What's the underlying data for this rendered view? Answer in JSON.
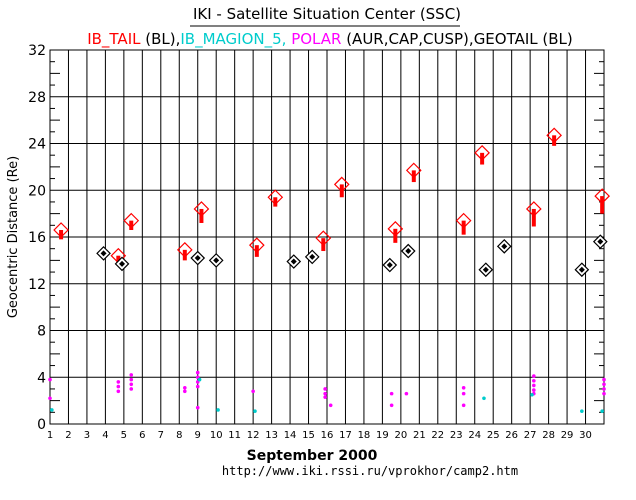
{
  "header": {
    "title": "IKI - Satellite Situation Center (SSC)",
    "subtitle_parts": [
      {
        "text": "IB_TAIL",
        "color": "#ff0000"
      },
      {
        "text": " (BL),",
        "color": "#000000"
      },
      {
        "text": "IB_MAGION_5,",
        "color": "#00cccc"
      },
      {
        "text": " POLAR",
        "color": "#ff00ff"
      },
      {
        "text": " (AUR,CAP,CUSP),",
        "color": "#000000"
      },
      {
        "text": "GEOTAIL",
        "color": "#000000"
      },
      {
        "text": " (BL)",
        "color": "#000000"
      }
    ]
  },
  "footer": {
    "month_year": "September   2000",
    "url": "http://www.iki.rssi.ru/vprokhor/camp2.htm"
  },
  "colors": {
    "ib_tail": "#ff0000",
    "ib_magion_5": "#00cccc",
    "polar": "#ff00ff",
    "geotail": "#000000",
    "grid": "#000000"
  },
  "chart_data": {
    "type": "scatter",
    "ylabel": "Geocentric Distance (Re)",
    "xlabel": "September 2000",
    "ylim": [
      0,
      32
    ],
    "xlim": [
      1,
      31
    ],
    "yticks": [
      0,
      4,
      8,
      12,
      16,
      20,
      24,
      28,
      32
    ],
    "xtick_labels": [
      "1",
      "2",
      "3",
      "4",
      "5",
      "6",
      "7",
      "8",
      "9",
      "10",
      "11",
      "12",
      "13",
      "14",
      "15",
      "16",
      "17",
      "18",
      "19",
      "20",
      "21",
      "22",
      "23",
      "24",
      "25",
      "26",
      "27",
      "28",
      "29",
      "30"
    ],
    "grid": true,
    "series": [
      {
        "name": "IB_TAIL",
        "marker": "diamond-with-bar",
        "points": [
          {
            "x": 1.6,
            "y": 16.6,
            "low": 15.8
          },
          {
            "x": 4.7,
            "y": 14.4,
            "low": 13.6
          },
          {
            "x": 5.4,
            "y": 17.4,
            "low": 16.6
          },
          {
            "x": 8.3,
            "y": 14.9,
            "low": 14.0
          },
          {
            "x": 9.2,
            "y": 18.4,
            "low": 17.2
          },
          {
            "x": 12.2,
            "y": 15.3,
            "low": 14.3
          },
          {
            "x": 13.2,
            "y": 19.4,
            "low": 18.6
          },
          {
            "x": 15.8,
            "y": 15.9,
            "low": 14.8
          },
          {
            "x": 16.8,
            "y": 20.5,
            "low": 19.4
          },
          {
            "x": 19.7,
            "y": 16.7,
            "low": 15.5
          },
          {
            "x": 20.7,
            "y": 21.7,
            "low": 20.7
          },
          {
            "x": 23.4,
            "y": 17.4,
            "low": 16.2
          },
          {
            "x": 24.4,
            "y": 23.2,
            "low": 22.2
          },
          {
            "x": 27.2,
            "y": 18.4,
            "low": 16.9
          },
          {
            "x": 28.3,
            "y": 24.7,
            "low": 23.8
          },
          {
            "x": 30.9,
            "y": 19.5,
            "low": 18.0
          }
        ]
      },
      {
        "name": "GEOTAIL",
        "marker": "diamond-filled-center",
        "points": [
          {
            "x": 3.9,
            "y": 14.6
          },
          {
            "x": 4.9,
            "y": 13.7
          },
          {
            "x": 9.0,
            "y": 14.2
          },
          {
            "x": 10.0,
            "y": 14.0
          },
          {
            "x": 14.2,
            "y": 13.9
          },
          {
            "x": 15.2,
            "y": 14.3
          },
          {
            "x": 19.4,
            "y": 13.6
          },
          {
            "x": 20.4,
            "y": 14.8
          },
          {
            "x": 24.6,
            "y": 13.2
          },
          {
            "x": 25.6,
            "y": 15.2
          },
          {
            "x": 29.8,
            "y": 13.2
          },
          {
            "x": 30.8,
            "y": 15.6
          }
        ]
      },
      {
        "name": "POLAR",
        "marker": "dot",
        "points": [
          {
            "x": 1.0,
            "y": 3.8
          },
          {
            "x": 1.0,
            "y": 2.2
          },
          {
            "x": 4.7,
            "y": 3.6
          },
          {
            "x": 4.7,
            "y": 3.2
          },
          {
            "x": 4.7,
            "y": 2.8
          },
          {
            "x": 5.4,
            "y": 4.2
          },
          {
            "x": 5.4,
            "y": 3.8
          },
          {
            "x": 5.4,
            "y": 3.4
          },
          {
            "x": 5.4,
            "y": 3.0
          },
          {
            "x": 8.3,
            "y": 3.1
          },
          {
            "x": 8.3,
            "y": 2.8
          },
          {
            "x": 9.0,
            "y": 4.4
          },
          {
            "x": 9.0,
            "y": 4.0
          },
          {
            "x": 9.0,
            "y": 3.6
          },
          {
            "x": 9.0,
            "y": 3.2
          },
          {
            "x": 9.0,
            "y": 1.4
          },
          {
            "x": 12.0,
            "y": 2.8
          },
          {
            "x": 15.9,
            "y": 3.0
          },
          {
            "x": 15.9,
            "y": 2.6
          },
          {
            "x": 15.9,
            "y": 2.3
          },
          {
            "x": 16.2,
            "y": 1.6
          },
          {
            "x": 19.5,
            "y": 2.6
          },
          {
            "x": 19.5,
            "y": 1.6
          },
          {
            "x": 20.3,
            "y": 2.6
          },
          {
            "x": 23.4,
            "y": 3.1
          },
          {
            "x": 23.4,
            "y": 2.6
          },
          {
            "x": 23.4,
            "y": 1.6
          },
          {
            "x": 27.2,
            "y": 4.1
          },
          {
            "x": 27.2,
            "y": 3.7
          },
          {
            "x": 27.2,
            "y": 3.3
          },
          {
            "x": 27.2,
            "y": 2.9
          },
          {
            "x": 27.2,
            "y": 2.6
          },
          {
            "x": 31.0,
            "y": 3.8
          },
          {
            "x": 31.0,
            "y": 3.4
          },
          {
            "x": 31.0,
            "y": 3.0
          },
          {
            "x": 31.0,
            "y": 2.6
          }
        ]
      },
      {
        "name": "IB_MAGION_5",
        "marker": "dot",
        "points": [
          {
            "x": 1.1,
            "y": 1.2
          },
          {
            "x": 9.1,
            "y": 3.8
          },
          {
            "x": 10.1,
            "y": 1.2
          },
          {
            "x": 12.1,
            "y": 1.1
          },
          {
            "x": 24.5,
            "y": 2.2
          },
          {
            "x": 27.1,
            "y": 2.5
          },
          {
            "x": 29.8,
            "y": 1.1
          },
          {
            "x": 30.9,
            "y": 1.1
          }
        ]
      }
    ]
  }
}
